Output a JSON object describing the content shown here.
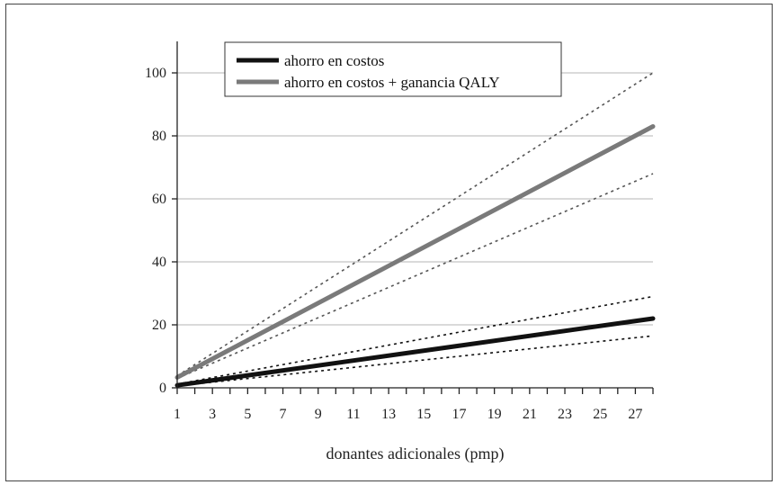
{
  "chart_data": {
    "type": "line",
    "title": "",
    "xlabel": "donantes adicionales (pmp)",
    "ylabel": "",
    "xlim": [
      1,
      28
    ],
    "ylim": [
      0,
      110
    ],
    "x_ticks": [
      1,
      3,
      5,
      7,
      9,
      11,
      13,
      15,
      17,
      19,
      21,
      23,
      25,
      27
    ],
    "y_ticks": [
      0,
      20,
      40,
      60,
      80,
      100
    ],
    "grid": "horizontal",
    "legend_position": "top-left",
    "series": [
      {
        "name": "ahorro en costos",
        "color": "#111111",
        "style": "solid",
        "x": [
          1,
          28
        ],
        "y": [
          0.8,
          22
        ]
      },
      {
        "name": "ahorro en costos + ganancia QALY",
        "color": "#7a7a7a",
        "style": "solid",
        "x": [
          1,
          28
        ],
        "y": [
          3.3,
          83
        ]
      },
      {
        "color": "#111111",
        "style": "dotted",
        "x": [
          1,
          28
        ],
        "y": [
          1.2,
          29
        ]
      },
      {
        "color": "#111111",
        "style": "dotted",
        "x": [
          1,
          28
        ],
        "y": [
          0.6,
          16.5
        ]
      },
      {
        "color": "#555555",
        "style": "dotted",
        "x": [
          1,
          28
        ],
        "y": [
          3.8,
          100
        ]
      },
      {
        "color": "#555555",
        "style": "dotted",
        "x": [
          1,
          28
        ],
        "y": [
          3.0,
          68
        ]
      }
    ]
  }
}
